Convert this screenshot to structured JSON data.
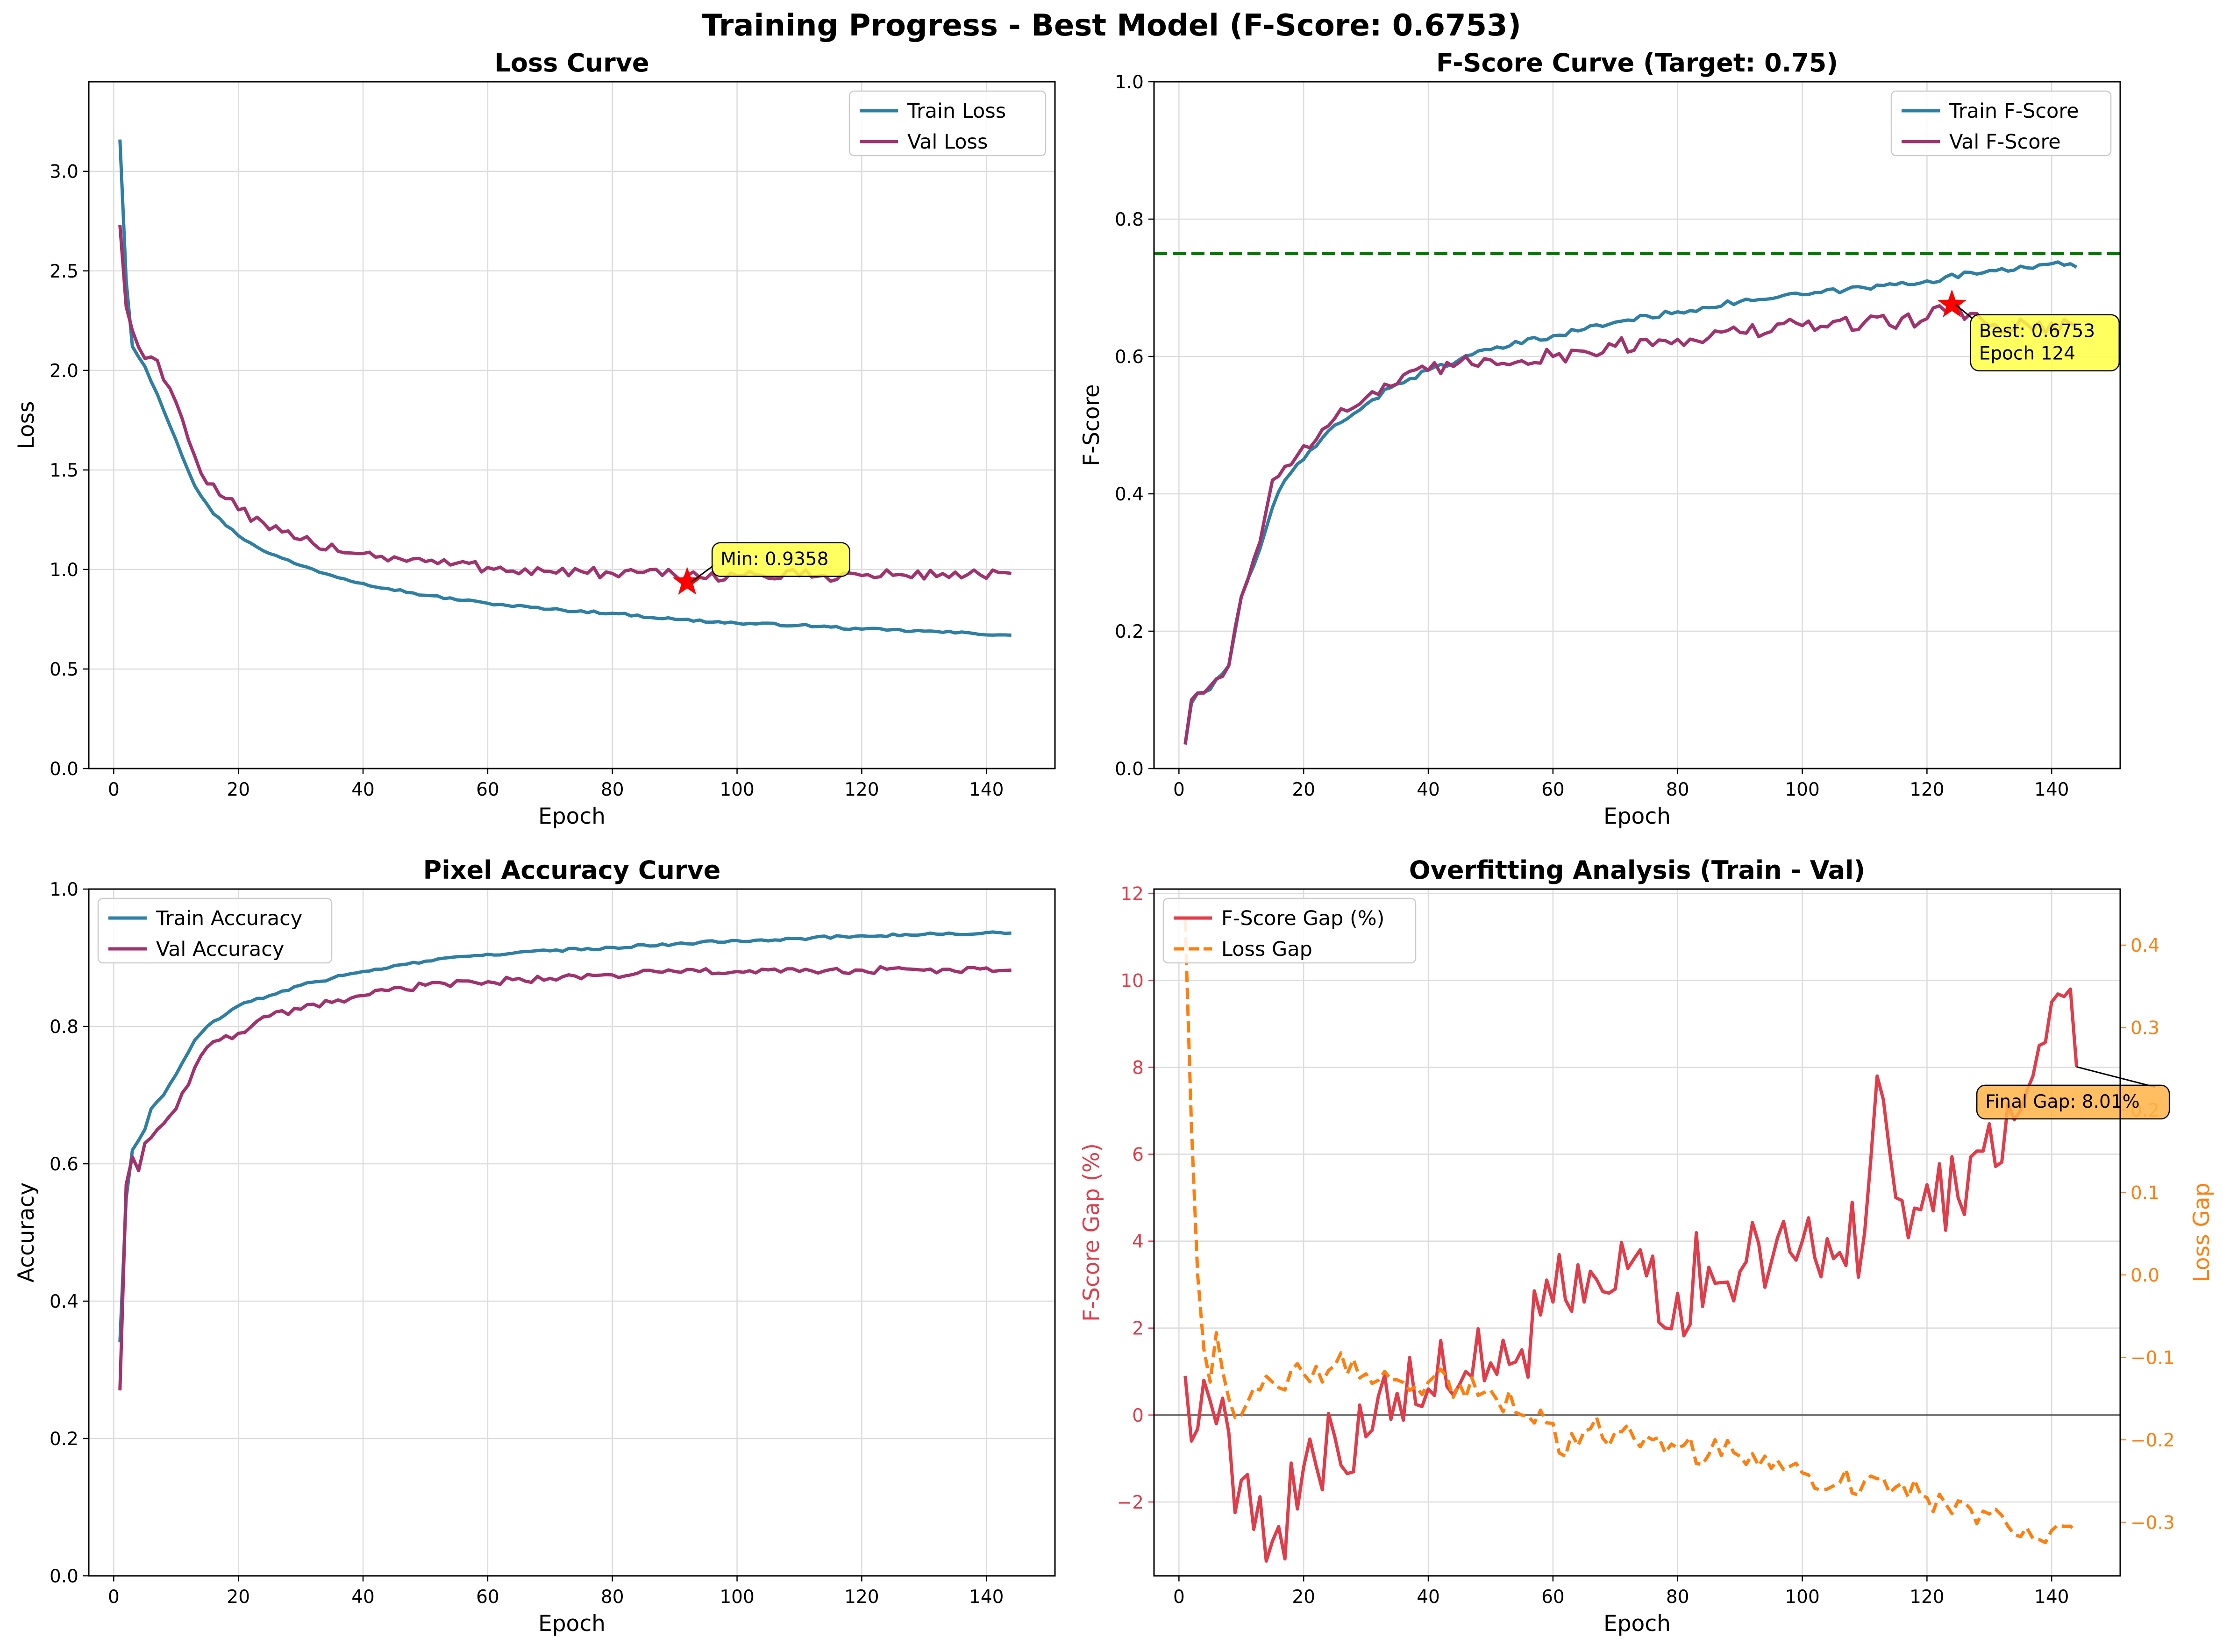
{
  "suptitle": "Training Progress - Best Model (F-Score: 0.6753)",
  "colors": {
    "train": "#2e7fa3",
    "val": "#a0326e",
    "target": "#007a00",
    "best_marker": "#ff0000",
    "gap": "#e03c4a",
    "loss_gap": "#ff7f0e",
    "annotation_yellow": "#ffff44",
    "annotation_orange": "#ffb347"
  },
  "chart_data": [
    {
      "id": "loss",
      "type": "line",
      "title": "Loss Curve",
      "xlabel": "Epoch",
      "ylabel": "Loss",
      "xlim": [
        -4,
        151
      ],
      "ylim": [
        0,
        3.45
      ],
      "xticks": [
        0,
        20,
        40,
        60,
        80,
        100,
        120,
        140
      ],
      "yticks": [
        0.0,
        0.5,
        1.0,
        1.5,
        2.0,
        2.5,
        3.0
      ],
      "ytick_decimals": 1,
      "grid": true,
      "legend": "top-right",
      "series": [
        {
          "name": "Train Loss",
          "color_key": "train",
          "epochs": [
            1,
            144
          ],
          "anchors": [
            [
              1,
              3.16
            ],
            [
              2,
              2.45
            ],
            [
              3,
              2.12
            ],
            [
              5,
              2.02
            ],
            [
              7,
              1.88
            ],
            [
              10,
              1.65
            ],
            [
              13,
              1.42
            ],
            [
              16,
              1.28
            ],
            [
              20,
              1.17
            ],
            [
              25,
              1.08
            ],
            [
              30,
              1.02
            ],
            [
              35,
              0.97
            ],
            [
              40,
              0.93
            ],
            [
              50,
              0.87
            ],
            [
              60,
              0.83
            ],
            [
              70,
              0.8
            ],
            [
              80,
              0.78
            ],
            [
              90,
              0.75
            ],
            [
              100,
              0.73
            ],
            [
              110,
              0.72
            ],
            [
              120,
              0.7
            ],
            [
              130,
              0.69
            ],
            [
              144,
              0.67
            ]
          ],
          "noise": 0.006
        },
        {
          "name": "Val Loss",
          "color_key": "val",
          "epochs": [
            1,
            144
          ],
          "anchors": [
            [
              1,
              2.73
            ],
            [
              2,
              2.32
            ],
            [
              3,
              2.2
            ],
            [
              5,
              2.06
            ],
            [
              7,
              2.05
            ],
            [
              10,
              1.84
            ],
            [
              12,
              1.65
            ],
            [
              15,
              1.43
            ],
            [
              20,
              1.3
            ],
            [
              25,
              1.2
            ],
            [
              30,
              1.15
            ],
            [
              40,
              1.08
            ],
            [
              50,
              1.04
            ],
            [
              60,
              1.01
            ],
            [
              70,
              0.99
            ],
            [
              80,
              0.98
            ],
            [
              92,
              0.97
            ],
            [
              100,
              0.97
            ],
            [
              120,
              0.97
            ],
            [
              144,
              0.98
            ]
          ],
          "noise": 0.03
        }
      ],
      "marker": {
        "x": 92,
        "y": 0.9358
      },
      "annotation": {
        "text": "Min: 0.9358",
        "x": 96,
        "y": 1.05
      }
    },
    {
      "id": "fscore",
      "type": "line",
      "title": "F-Score Curve (Target: 0.75)",
      "xlabel": "Epoch",
      "ylabel": "F-Score",
      "xlim": [
        -4,
        151
      ],
      "ylim": [
        0,
        1.0
      ],
      "xticks": [
        0,
        20,
        40,
        60,
        80,
        100,
        120,
        140
      ],
      "yticks": [
        0.0,
        0.2,
        0.4,
        0.6,
        0.8,
        1.0
      ],
      "ytick_decimals": 1,
      "grid": true,
      "legend": "top-right",
      "target_line": 0.75,
      "series": [
        {
          "name": "Train F-Score",
          "color_key": "train",
          "epochs": [
            1,
            144
          ],
          "anchors": [
            [
              1,
              0.035
            ],
            [
              2,
              0.095
            ],
            [
              3,
              0.11
            ],
            [
              5,
              0.115
            ],
            [
              8,
              0.15
            ],
            [
              10,
              0.25
            ],
            [
              13,
              0.32
            ],
            [
              15,
              0.38
            ],
            [
              17,
              0.42
            ],
            [
              20,
              0.45
            ],
            [
              25,
              0.5
            ],
            [
              30,
              0.53
            ],
            [
              35,
              0.56
            ],
            [
              40,
              0.58
            ],
            [
              50,
              0.61
            ],
            [
              60,
              0.63
            ],
            [
              70,
              0.65
            ],
            [
              80,
              0.665
            ],
            [
              90,
              0.68
            ],
            [
              100,
              0.69
            ],
            [
              110,
              0.7
            ],
            [
              120,
              0.71
            ],
            [
              130,
              0.725
            ],
            [
              140,
              0.735
            ],
            [
              144,
              0.73
            ]
          ],
          "noise": 0.004
        },
        {
          "name": "Val F-Score",
          "color_key": "val",
          "epochs": [
            1,
            144
          ],
          "anchors": [
            [
              1,
              0.035
            ],
            [
              2,
              0.1
            ],
            [
              3,
              0.11
            ],
            [
              5,
              0.12
            ],
            [
              8,
              0.15
            ],
            [
              10,
              0.25
            ],
            [
              13,
              0.33
            ],
            [
              15,
              0.42
            ],
            [
              17,
              0.44
            ],
            [
              20,
              0.47
            ],
            [
              25,
              0.51
            ],
            [
              30,
              0.54
            ],
            [
              35,
              0.56
            ],
            [
              40,
              0.58
            ],
            [
              50,
              0.595
            ],
            [
              60,
              0.6
            ],
            [
              70,
              0.615
            ],
            [
              80,
              0.625
            ],
            [
              90,
              0.635
            ],
            [
              100,
              0.645
            ],
            [
              110,
              0.65
            ],
            [
              120,
              0.655
            ],
            [
              124,
              0.6753
            ],
            [
              130,
              0.645
            ],
            [
              144,
              0.645
            ]
          ],
          "noise": 0.012
        }
      ],
      "marker": {
        "x": 124,
        "y": 0.6753
      },
      "annotation": {
        "text_lines": [
          "Best: 0.6753",
          "Epoch 124"
        ],
        "x": 127,
        "y": 0.62
      }
    },
    {
      "id": "accuracy",
      "type": "line",
      "title": "Pixel Accuracy Curve",
      "xlabel": "Epoch",
      "ylabel": "Accuracy",
      "xlim": [
        -4,
        151
      ],
      "ylim": [
        0,
        1.0
      ],
      "xticks": [
        0,
        20,
        40,
        60,
        80,
        100,
        120,
        140
      ],
      "yticks": [
        0.0,
        0.2,
        0.4,
        0.6,
        0.8,
        1.0
      ],
      "ytick_decimals": 1,
      "grid": true,
      "legend": "top-left",
      "series": [
        {
          "name": "Train Accuracy",
          "color_key": "train",
          "epochs": [
            1,
            144
          ],
          "anchors": [
            [
              1,
              0.34
            ],
            [
              2,
              0.55
            ],
            [
              3,
              0.62
            ],
            [
              5,
              0.65
            ],
            [
              6,
              0.68
            ],
            [
              8,
              0.7
            ],
            [
              10,
              0.73
            ],
            [
              13,
              0.78
            ],
            [
              15,
              0.8
            ],
            [
              20,
              0.83
            ],
            [
              25,
              0.845
            ],
            [
              30,
              0.86
            ],
            [
              35,
              0.87
            ],
            [
              40,
              0.88
            ],
            [
              50,
              0.895
            ],
            [
              60,
              0.905
            ],
            [
              70,
              0.91
            ],
            [
              80,
              0.915
            ],
            [
              90,
              0.92
            ],
            [
              100,
              0.925
            ],
            [
              110,
              0.928
            ],
            [
              120,
              0.932
            ],
            [
              130,
              0.934
            ],
            [
              144,
              0.936
            ]
          ],
          "noise": 0.002
        },
        {
          "name": "Val Accuracy",
          "color_key": "val",
          "epochs": [
            1,
            144
          ],
          "anchors": [
            [
              1,
              0.27
            ],
            [
              2,
              0.57
            ],
            [
              3,
              0.61
            ],
            [
              4,
              0.59
            ],
            [
              5,
              0.63
            ],
            [
              7,
              0.65
            ],
            [
              10,
              0.68
            ],
            [
              13,
              0.74
            ],
            [
              15,
              0.77
            ],
            [
              20,
              0.79
            ],
            [
              25,
              0.815
            ],
            [
              30,
              0.825
            ],
            [
              35,
              0.835
            ],
            [
              40,
              0.845
            ],
            [
              50,
              0.86
            ],
            [
              60,
              0.865
            ],
            [
              70,
              0.87
            ],
            [
              80,
              0.875
            ],
            [
              90,
              0.88
            ],
            [
              100,
              0.88
            ],
            [
              110,
              0.88
            ],
            [
              120,
              0.882
            ],
            [
              130,
              0.882
            ],
            [
              144,
              0.882
            ]
          ],
          "noise": 0.005
        }
      ]
    },
    {
      "id": "overfit",
      "type": "line",
      "title": "Overfitting Analysis (Train - Val)",
      "xlabel": "Epoch",
      "ylabel": "F-Score Gap (%)",
      "ylabel_right": "Loss Gap",
      "xlim": [
        -4,
        151
      ],
      "ylim": [
        -3.7,
        12.1
      ],
      "ylim_right": [
        -0.365,
        0.468
      ],
      "xticks": [
        0,
        20,
        40,
        60,
        80,
        100,
        120,
        140
      ],
      "yticks": [
        -2,
        0,
        2,
        4,
        6,
        8,
        10,
        12
      ],
      "ytick_decimals": 0,
      "yticks_right": [
        -0.3,
        -0.2,
        -0.1,
        0.0,
        0.1,
        0.2,
        0.3,
        0.4
      ],
      "ytick_right_decimals": 1,
      "grid": true,
      "legend": "top-left",
      "zero_line": 0,
      "series": [
        {
          "name": "F-Score Gap (%)",
          "color_key": "gap",
          "axis": "left",
          "epochs": [
            1,
            144
          ],
          "anchors": [
            [
              1,
              0.9
            ],
            [
              2,
              -0.6
            ],
            [
              4,
              0.8
            ],
            [
              6,
              -0.2
            ],
            [
              10,
              -1.5
            ],
            [
              15,
              -2.9
            ],
            [
              20,
              -1.2
            ],
            [
              25,
              -0.5
            ],
            [
              30,
              -0.5
            ],
            [
              35,
              0.5
            ],
            [
              40,
              0.6
            ],
            [
              45,
              0.7
            ],
            [
              50,
              1.2
            ],
            [
              55,
              1.5
            ],
            [
              60,
              2.6
            ],
            [
              65,
              2.6
            ],
            [
              70,
              2.9
            ],
            [
              75,
              3.2
            ],
            [
              80,
              2.8
            ],
            [
              85,
              3.4
            ],
            [
              90,
              3.3
            ],
            [
              95,
              3.5
            ],
            [
              100,
              4.0
            ],
            [
              105,
              3.6
            ],
            [
              110,
              4.2
            ],
            [
              112,
              7.8
            ],
            [
              115,
              5.0
            ],
            [
              120,
              5.3
            ],
            [
              125,
              5.0
            ],
            [
              130,
              6.7
            ],
            [
              135,
              7.0
            ],
            [
              138,
              8.5
            ],
            [
              140,
              9.5
            ],
            [
              143,
              9.8
            ],
            [
              144,
              8.01
            ]
          ],
          "noise": 1.1
        },
        {
          "name": "Loss Gap",
          "color_key": "loss_gap",
          "axis": "right",
          "dashed": true,
          "epochs": [
            1,
            144
          ],
          "anchors": [
            [
              1,
              0.43
            ],
            [
              2,
              0.18
            ],
            [
              3,
              0.0
            ],
            [
              4,
              -0.09
            ],
            [
              5,
              -0.13
            ],
            [
              6,
              -0.07
            ],
            [
              8,
              -0.15
            ],
            [
              10,
              -0.17
            ],
            [
              15,
              -0.13
            ],
            [
              20,
              -0.12
            ],
            [
              25,
              -0.11
            ],
            [
              30,
              -0.12
            ],
            [
              40,
              -0.13
            ],
            [
              50,
              -0.14
            ],
            [
              55,
              -0.17
            ],
            [
              60,
              -0.18
            ],
            [
              62,
              -0.22
            ],
            [
              65,
              -0.19
            ],
            [
              70,
              -0.19
            ],
            [
              80,
              -0.21
            ],
            [
              90,
              -0.22
            ],
            [
              100,
              -0.24
            ],
            [
              110,
              -0.25
            ],
            [
              120,
              -0.27
            ],
            [
              130,
              -0.29
            ],
            [
              140,
              -0.31
            ],
            [
              144,
              -0.31
            ]
          ],
          "noise": 0.018
        }
      ],
      "annotation": {
        "text": "Final Gap: 8.01%",
        "x": 128,
        "y": 7.2
      }
    }
  ]
}
